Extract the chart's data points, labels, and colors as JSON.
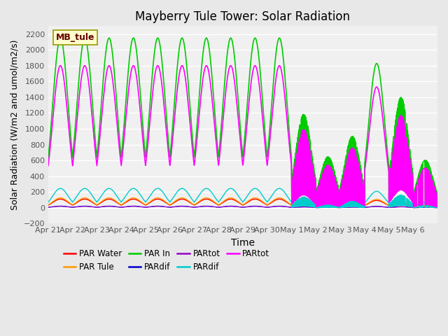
{
  "title": "Mayberry Tule Tower: Solar Radiation",
  "xlabel": "Time",
  "ylabel": "Solar Radiation (W/m2 and umol/m2/s)",
  "ylim": [
    -200,
    2300
  ],
  "yticks": [
    -200,
    0,
    200,
    400,
    600,
    800,
    1000,
    1200,
    1400,
    1600,
    1800,
    2000,
    2200
  ],
  "date_labels": [
    "Apr 21",
    "Apr 22",
    "Apr 23",
    "Apr 24",
    "Apr 25",
    "Apr 26",
    "Apr 27",
    "Apr 28",
    "Apr 29",
    "Apr 30",
    "May 1",
    "May 2",
    "May 3",
    "May 4",
    "May 5",
    "May 6"
  ],
  "n_days": 16,
  "legend_entries": [
    {
      "label": "PAR Water",
      "color": "#ff0000"
    },
    {
      "label": "PAR Tule",
      "color": "#ff9900"
    },
    {
      "label": "PAR In",
      "color": "#00cc00"
    },
    {
      "label": "PARdif",
      "color": "#0000cc"
    },
    {
      "label": "PARtot",
      "color": "#9900cc"
    },
    {
      "label": "PARdif",
      "color": "#00cccc"
    },
    {
      "label": "PARtot",
      "color": "#ff00ff"
    }
  ],
  "inset_label": "MB_tule",
  "background_color": "#e8e8e8",
  "plot_bg": "#f0f0f0"
}
